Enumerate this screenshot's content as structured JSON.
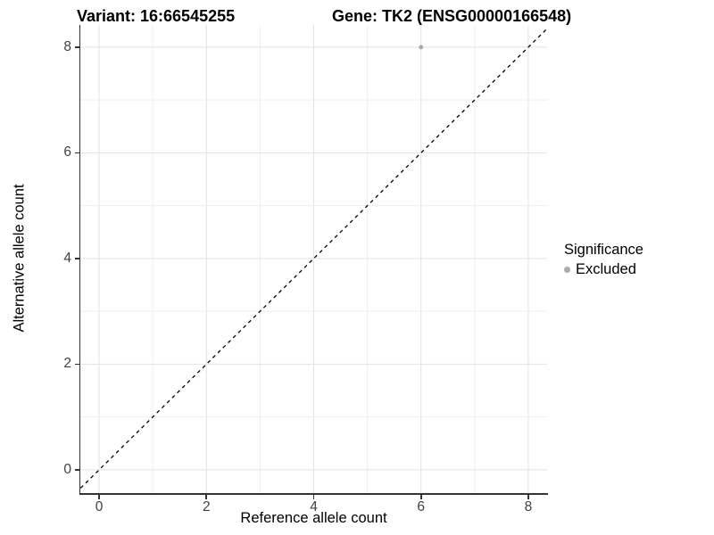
{
  "titles": {
    "variant": "Variant: 16:66545255",
    "gene": "Gene: TK2 (ENSG00000166548)"
  },
  "axes": {
    "x": {
      "label": "Reference allele count",
      "tick_labels": [
        "0",
        "2",
        "4",
        "6",
        "8"
      ]
    },
    "y": {
      "label": "Alternative allele count",
      "tick_labels": [
        "0",
        "2",
        "4",
        "6",
        "8"
      ]
    }
  },
  "legend": {
    "title": "Significance",
    "items": [
      {
        "label": "Excluded",
        "color": "#ababab"
      }
    ]
  },
  "chart_data": {
    "type": "scatter",
    "title": "Variant: 16:66545255   |   Gene: TK2 (ENSG00000166548)",
    "xlabel": "Reference allele count",
    "ylabel": "Alternative allele count",
    "xlim": [
      -0.35,
      8.35
    ],
    "ylim": [
      -0.44,
      8.42
    ],
    "x_ticks": [
      0,
      2,
      4,
      6,
      8
    ],
    "y_ticks": [
      0,
      2,
      4,
      6,
      8
    ],
    "grid": "major and minor gridlines at every integer 0-8, light gray, white panel background",
    "grid_major_color": "#e2e2e2",
    "grid_minor_color": "#eeeeee",
    "axis_color": "#333333",
    "series": [
      {
        "name": "Excluded",
        "color": "#ababab",
        "points": [
          [
            6,
            8
          ]
        ],
        "point_radius": 2.5
      }
    ],
    "reference_line": {
      "type": "identity y=x",
      "style": "dashed",
      "color": "#000000"
    },
    "legend_position": "right"
  }
}
